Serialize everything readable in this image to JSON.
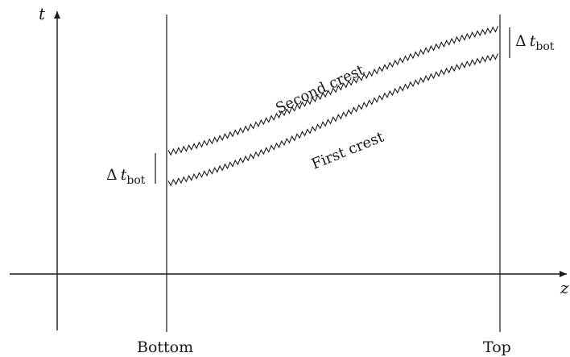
{
  "axes": {
    "y_symbol": "t",
    "x_symbol": "z"
  },
  "positions": {
    "bottom": "Bottom",
    "top": "Top"
  },
  "crests": {
    "first": "First crest",
    "second": "Second crest"
  },
  "delta": {
    "symbol": "Δ",
    "var": "t",
    "subscript": "bot"
  }
}
